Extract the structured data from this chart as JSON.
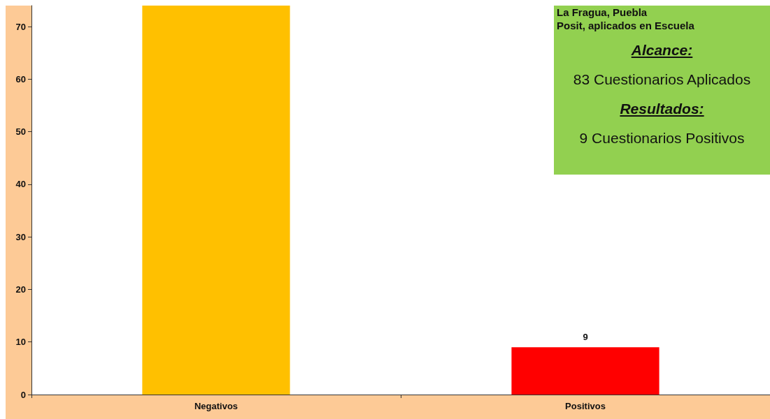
{
  "chart_data": {
    "type": "bar",
    "categories": [
      "Negativos",
      "Positivos"
    ],
    "values": [
      74,
      9
    ],
    "colors": [
      "#ffc000",
      "#ff0000"
    ],
    "value_labels": [
      null,
      "9"
    ],
    "ylim": [
      0,
      74
    ],
    "yticks": [
      0,
      10,
      20,
      30,
      40,
      50,
      60,
      70
    ],
    "grid": false,
    "annotations": [
      "La Fragua, Puebla",
      "Posit, aplicados en Escuela",
      "Alcance:",
      "83 Cuestionarios Aplicados",
      "Resultados:",
      "9 Cuestionarios Positivos"
    ]
  }
}
